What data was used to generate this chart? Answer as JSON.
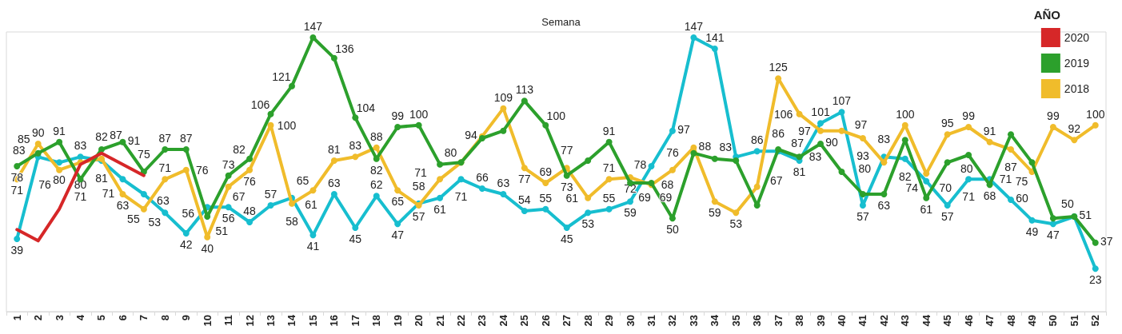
{
  "chart_data": {
    "type": "line",
    "xlabel": "Semana",
    "legend_title": "AÑO",
    "legend": "top right",
    "grid": false,
    "marker": "circle",
    "line_style": "solid",
    "categories": [
      "1",
      "2",
      "3",
      "4",
      "5",
      "6",
      "7",
      "8",
      "9",
      "10",
      "11",
      "12",
      "13",
      "14",
      "15",
      "16",
      "17",
      "18",
      "19",
      "20",
      "21",
      "22",
      "23",
      "24",
      "25",
      "26",
      "27",
      "28",
      "29",
      "30",
      "31",
      "32",
      "33",
      "34",
      "35",
      "36",
      "37",
      "38",
      "39",
      "40",
      "41",
      "42",
      "43",
      "44",
      "45",
      "46",
      "47",
      "48",
      "49",
      "50",
      "51",
      "52"
    ],
    "series": [
      {
        "name": "2020",
        "color": "#d62728",
        "marker": "none",
        "values": [
          44,
          38,
          55,
          79,
          85,
          79,
          73,
          null,
          null,
          null,
          null,
          null,
          null,
          null,
          null,
          null,
          null,
          null,
          null,
          null,
          null,
          null,
          null,
          null,
          null,
          null,
          null,
          null,
          null,
          null,
          null,
          null,
          null,
          null,
          null,
          null,
          null,
          null,
          null,
          null,
          null,
          null,
          null,
          null,
          null,
          null,
          null,
          null,
          null,
          null,
          null,
          null
        ],
        "value_labels": [
          null,
          null,
          null,
          null,
          null,
          null,
          null,
          null,
          null,
          null,
          null,
          null,
          null,
          null,
          null,
          null,
          null,
          null,
          null,
          null,
          null,
          null,
          null,
          null,
          null,
          null,
          null,
          null,
          null,
          null,
          null,
          null,
          null,
          null,
          null,
          null,
          null,
          null,
          null,
          null,
          null,
          null,
          null,
          null,
          null,
          null,
          null,
          null,
          null,
          null,
          null,
          null
        ]
      },
      {
        "name": "2019",
        "color": "#2ca02c",
        "values": [
          78,
          85,
          91,
          71,
          87,
          91,
          75,
          87,
          87,
          51,
          73,
          82,
          106,
          121,
          147,
          136,
          104,
          82,
          99,
          100,
          79,
          80,
          93,
          97,
          113,
          100,
          73,
          81,
          91,
          69,
          69,
          50,
          85,
          82,
          81,
          57,
          87,
          83,
          90,
          75,
          63,
          63,
          92,
          61,
          80,
          84,
          68,
          95,
          80,
          50,
          51,
          37
        ],
        "value_labels": [
          "78",
          "85",
          "91",
          "71",
          "87",
          "91",
          "75",
          "87",
          "87",
          "51",
          "73",
          "82",
          "106",
          "121",
          "147",
          "136",
          "104",
          "82",
          "99",
          "100",
          null,
          null,
          null,
          null,
          "113",
          "100",
          "73",
          null,
          "91",
          "69",
          "69",
          "50",
          null,
          null,
          null,
          null,
          "87",
          "83",
          "90",
          null,
          null,
          "63",
          null,
          "61",
          "80",
          null,
          "68",
          null,
          null,
          "50",
          "51",
          "37"
        ]
      },
      {
        "name": "2018",
        "color": "#f0bc2b",
        "values": [
          71,
          90,
          76,
          80,
          82,
          63,
          55,
          71,
          76,
          40,
          67,
          76,
          100,
          58,
          65,
          81,
          83,
          88,
          65,
          57,
          71,
          80,
          94,
          109,
          77,
          69,
          77,
          61,
          71,
          72,
          68,
          76,
          88,
          59,
          53,
          67,
          125,
          106,
          97,
          97,
          93,
          80,
          100,
          74,
          95,
          99,
          91,
          87,
          75,
          99,
          92,
          100
        ],
        "value_labels": [
          "71",
          "90",
          "76",
          "80",
          "82",
          "63",
          "55",
          "71",
          "76",
          "40",
          "67",
          "76",
          "100",
          "58",
          "65",
          "81",
          "83",
          "88",
          "65",
          "57",
          "71",
          "80",
          "94",
          "109",
          "77",
          "69",
          "77",
          "61",
          "71",
          "72",
          "68",
          "76",
          "88",
          "59",
          "53",
          "67",
          "125",
          "106",
          "97",
          "97",
          "93",
          "80",
          "100",
          "74",
          "95",
          "99",
          "91",
          "87",
          "75",
          "99",
          "92",
          "100"
        ]
      },
      {
        "color": "#17becf",
        "values": [
          39,
          83,
          80,
          83,
          81,
          71,
          63,
          53,
          42,
          56,
          56,
          48,
          57,
          61,
          41,
          63,
          45,
          62,
          47,
          58,
          61,
          71,
          66,
          63,
          54,
          55,
          45,
          53,
          55,
          59,
          78,
          97,
          147,
          141,
          83,
          86,
          86,
          81,
          101,
          107,
          57,
          83,
          82,
          70,
          57,
          71,
          71,
          60,
          49,
          47,
          51,
          23
        ],
        "value_labels": [
          "39",
          "83",
          "80",
          "83",
          "81",
          "71",
          "63",
          "53",
          "42",
          "56",
          "56",
          "48",
          "57",
          "61",
          "41",
          "63",
          "45",
          "62",
          "47",
          "58",
          "61",
          "71",
          "66",
          "63",
          "54",
          "55",
          "45",
          "53",
          "55",
          "59",
          "78",
          "97",
          "147",
          "141",
          "83",
          "86",
          "86",
          "81",
          "101",
          "107",
          "57",
          "83",
          "82",
          "70",
          "57",
          "71",
          "71",
          "60",
          "49",
          "47",
          null,
          "23"
        ]
      }
    ]
  }
}
